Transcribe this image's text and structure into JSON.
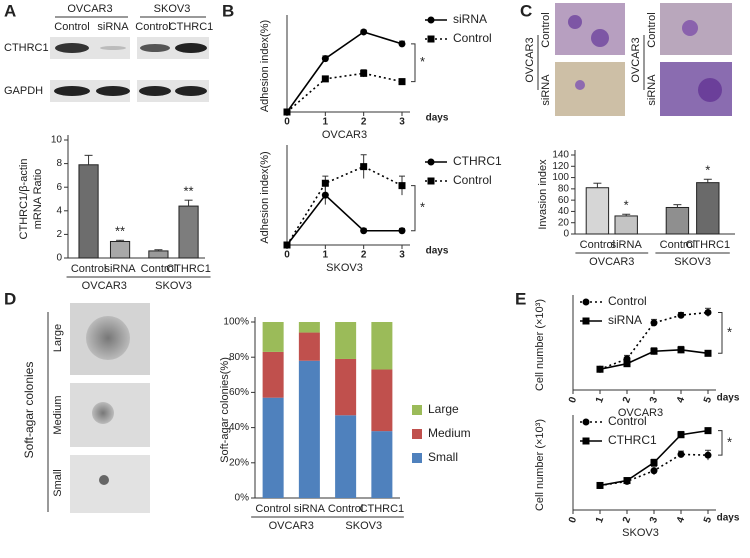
{
  "panel_labels": [
    "A",
    "B",
    "C",
    "D",
    "E"
  ],
  "blot": {
    "cell_lines": [
      "OVCAR3",
      "SKOV3"
    ],
    "lanes": [
      "Control",
      "siRNA",
      "Control",
      "CTHRC1"
    ],
    "rows": [
      "CTHRC1",
      "GAPDH"
    ]
  },
  "invasion_images": {
    "groups": [
      {
        "cell_line": "OVCAR3",
        "conditions": [
          "Control",
          "siRNA"
        ]
      },
      {
        "cell_line": "OVCAR3",
        "conditions": [
          "Control",
          "siRNA"
        ]
      }
    ]
  },
  "colony_images": {
    "title": "Soft-agar colonies",
    "sizes": [
      "Large",
      "Medium",
      "Small"
    ]
  },
  "chart_data": [
    {
      "type": "bar",
      "y_label": [
        "CTHRC1/β-actin",
        "mRNA Ratio"
      ],
      "categories": [
        "Control",
        "siRNA",
        "Control",
        "CTHRC1"
      ],
      "groups": [
        "OVCAR3",
        "SKOV3"
      ],
      "values": [
        7.9,
        1.4,
        0.6,
        4.4
      ],
      "errors": [
        0.8,
        0.1,
        0.1,
        0.5
      ],
      "annotations": [
        null,
        "**",
        null,
        "**"
      ],
      "colors": [
        "#6d6d6d",
        "#a8a8a8",
        "#9a9a9a",
        "#7d7d7d"
      ],
      "ylim": [
        0,
        10
      ],
      "yticks": [
        0,
        2,
        4,
        6,
        8,
        10
      ]
    },
    {
      "type": "line",
      "y_label": "Adhesion index(%)",
      "x_label": "OVCAR3",
      "x_unit": "days",
      "x": [
        0,
        1,
        2,
        3
      ],
      "xlim": [
        0,
        3
      ],
      "xticks": [
        0,
        1,
        2,
        3
      ],
      "ylim": [
        0,
        100
      ],
      "series": [
        {
          "name": "siRNA",
          "color": "#000000",
          "style": "solid",
          "marker": "circle",
          "values": [
            0,
            58,
            87,
            74
          ],
          "errors": [
            0,
            3,
            2,
            3
          ]
        },
        {
          "name": "Control",
          "color": "#000000",
          "style": "dotted",
          "marker": "square",
          "values": [
            0,
            36,
            42,
            33
          ],
          "errors": [
            0,
            2,
            4,
            3
          ]
        }
      ],
      "annotation": "*"
    },
    {
      "type": "line",
      "y_label": "Adhesion index(%)",
      "x_label": "SKOV3",
      "x_unit": "days",
      "x": [
        0,
        1,
        2,
        3
      ],
      "xlim": [
        0,
        3
      ],
      "xticks": [
        0,
        1,
        2,
        3
      ],
      "ylim": [
        0,
        40
      ],
      "series": [
        {
          "name": "CTHRC1",
          "color": "#000000",
          "style": "solid",
          "marker": "circle",
          "values": [
            0,
            21,
            6,
            6
          ],
          "errors": [
            0,
            4,
            1,
            1
          ]
        },
        {
          "name": "Control",
          "color": "#000000",
          "style": "dotted",
          "marker": "square",
          "values": [
            0,
            26,
            33,
            25
          ],
          "errors": [
            0,
            3,
            5,
            4
          ]
        }
      ],
      "annotation": "*"
    },
    {
      "type": "bar",
      "y_label": [
        "Invasion index"
      ],
      "categories": [
        "Control",
        "siRNA",
        "Control",
        "CTHRC1"
      ],
      "groups": [
        "OVCAR3",
        "SKOV3"
      ],
      "values": [
        82,
        32,
        47,
        91
      ],
      "errors": [
        8,
        3,
        5,
        6
      ],
      "annotations": [
        null,
        "*",
        null,
        "*"
      ],
      "colors": [
        "#d6d6d6",
        "#c4c4c4",
        "#8f8f8f",
        "#6a6a6a"
      ],
      "ylim": [
        0,
        140
      ],
      "yticks": [
        0,
        20,
        40,
        60,
        80,
        100,
        120,
        140
      ]
    },
    {
      "type": "stacked_bar",
      "y_label": "Soft-agar colonies(%)",
      "categories": [
        "Control",
        "siRNA",
        "Control",
        "CTHRC1"
      ],
      "groups": [
        "OVCAR3",
        "SKOV3"
      ],
      "series": [
        {
          "name": "Small",
          "color": "#4f81bd",
          "values": [
            57,
            78,
            47,
            38
          ]
        },
        {
          "name": "Medium",
          "color": "#c0504d",
          "values": [
            26,
            16,
            32,
            35
          ]
        },
        {
          "name": "Large",
          "color": "#9bbb59",
          "values": [
            17,
            6,
            21,
            27
          ]
        }
      ],
      "ylim": [
        0,
        100
      ],
      "yticks": [
        {
          "value": 0,
          "label": "0%"
        },
        {
          "value": 20,
          "label": "20%"
        },
        {
          "value": 40,
          "label": "40%"
        },
        {
          "value": 60,
          "label": "60%"
        },
        {
          "value": 80,
          "label": "80%"
        },
        {
          "value": 100,
          "label": "100%"
        }
      ]
    },
    {
      "type": "line",
      "y_label": "Cell number (×10³)",
      "x_label": "OVCAR3",
      "x_unit": "days",
      "x": [
        1,
        2,
        3,
        4,
        5
      ],
      "xlim": [
        0,
        5
      ],
      "xticks": [
        0,
        1,
        2,
        3,
        4,
        5
      ],
      "ylim": [
        0,
        130
      ],
      "series": [
        {
          "name": "Control",
          "color": "#000000",
          "style": "dotted",
          "marker": "circle",
          "values": [
            30,
            45,
            97,
            108,
            112
          ],
          "errors": [
            1,
            5,
            5,
            4,
            6
          ]
        },
        {
          "name": "siRNA",
          "color": "#000000",
          "style": "solid",
          "marker": "square",
          "values": [
            30,
            38,
            56,
            58,
            53
          ],
          "errors": [
            1,
            4,
            5,
            5,
            3
          ]
        }
      ],
      "annotation": "*"
    },
    {
      "type": "line",
      "y_label": "Cell number (×10³)",
      "x_label": "SKOV3",
      "x_unit": "days",
      "x": [
        1,
        2,
        3,
        4,
        5
      ],
      "xlim": [
        0,
        5
      ],
      "xticks": [
        0,
        1,
        2,
        3,
        4,
        5
      ],
      "ylim": [
        0,
        110
      ],
      "series": [
        {
          "name": "Control",
          "color": "#000000",
          "style": "dotted",
          "marker": "circle",
          "values": [
            30,
            35,
            48,
            68,
            67
          ],
          "errors": [
            1,
            2,
            5,
            4,
            6
          ]
        },
        {
          "name": "CTHRC1",
          "color": "#000000",
          "style": "solid",
          "marker": "square",
          "values": [
            30,
            36,
            58,
            92,
            97
          ],
          "errors": [
            1,
            3,
            4,
            4,
            3
          ]
        }
      ],
      "annotation": "*"
    }
  ]
}
